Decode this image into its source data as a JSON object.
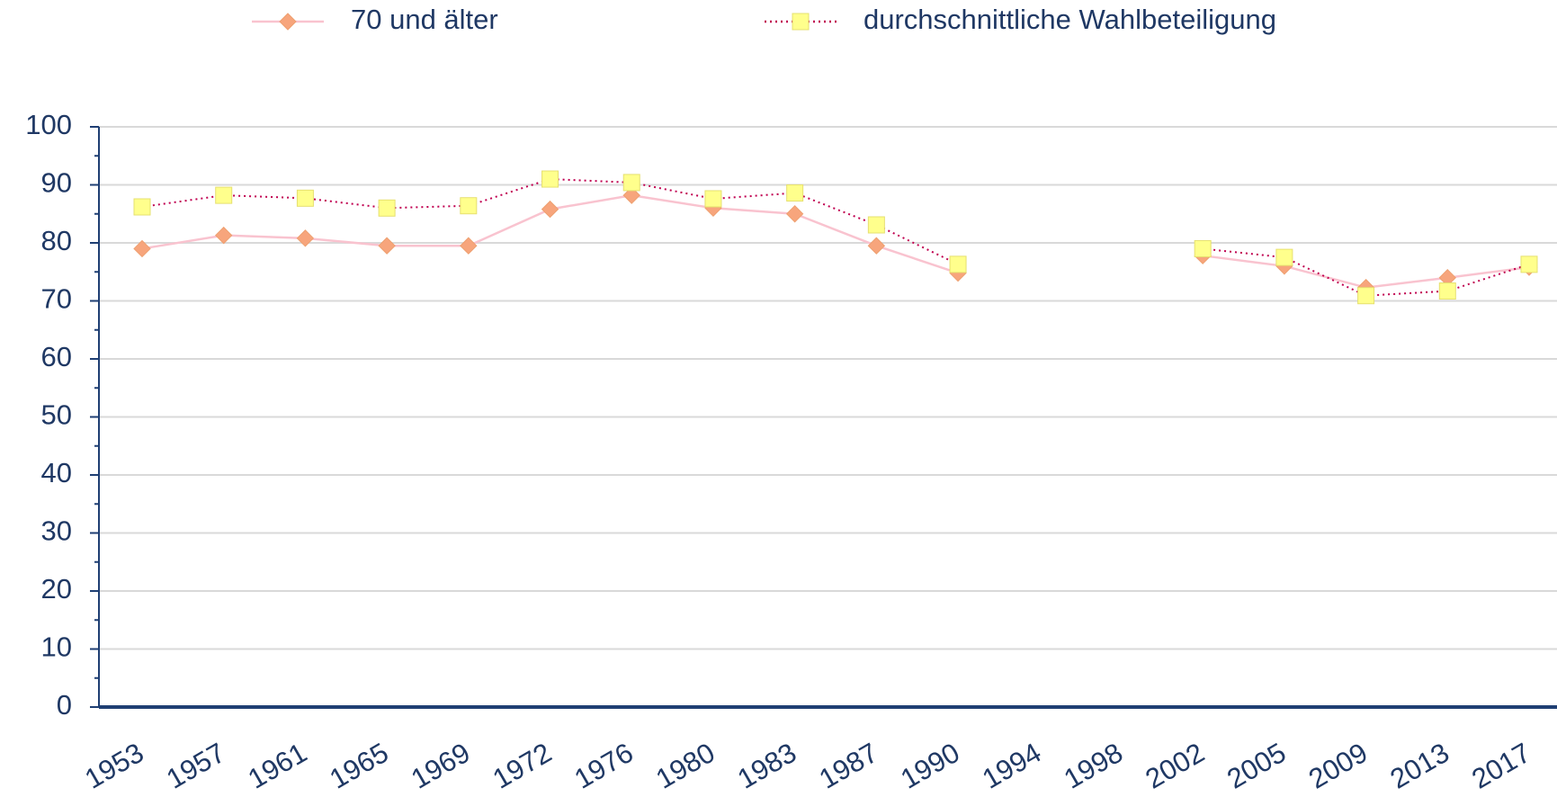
{
  "chart_data": {
    "type": "line",
    "categories": [
      "1953",
      "1957",
      "1961",
      "1965",
      "1969",
      "1972",
      "1976",
      "1980",
      "1983",
      "1987",
      "1990",
      "1994",
      "1998",
      "2002",
      "2005",
      "2009",
      "2013",
      "2017"
    ],
    "series": [
      {
        "name": "70 und älter",
        "color": "#f9c3cf",
        "marker_color": "#f7a57c",
        "marker": "diamond",
        "line_style": "solid",
        "values": [
          79.0,
          81.3,
          80.8,
          79.5,
          79.5,
          85.8,
          88.2,
          86.0,
          85.0,
          79.5,
          74.8,
          null,
          null,
          77.8,
          76.0,
          72.3,
          74.0,
          75.8
        ]
      },
      {
        "name": "durchschnittliche Wahlbeteiligung",
        "color": "#c00050",
        "marker_color": "#ffff8c",
        "marker": "square",
        "line_style": "dotted",
        "values": [
          86.2,
          88.2,
          87.7,
          86.0,
          86.4,
          91.0,
          90.4,
          87.6,
          88.6,
          83.1,
          76.3,
          null,
          null,
          79.0,
          77.5,
          70.9,
          71.7,
          76.3
        ]
      }
    ],
    "ylim": [
      0,
      100
    ],
    "yticks": [
      0,
      10,
      20,
      30,
      40,
      50,
      60,
      70,
      80,
      90,
      100
    ],
    "grid": true,
    "legend": "top"
  }
}
